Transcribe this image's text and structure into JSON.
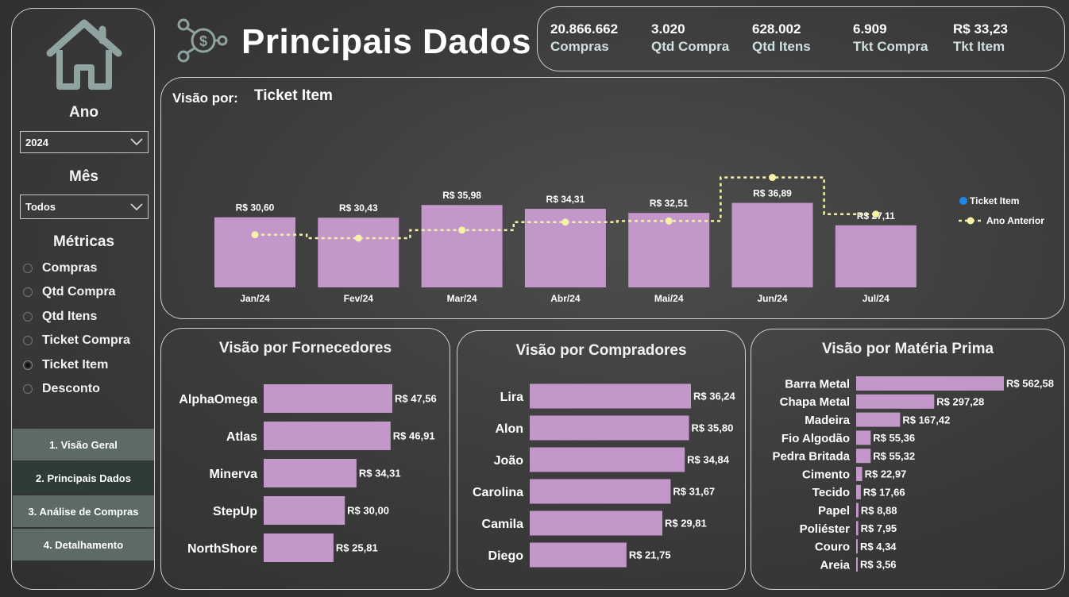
{
  "sidebar": {
    "ano_label": "Ano",
    "ano_value": "2024",
    "mes_label": "Mês",
    "mes_value": "Todos",
    "metricas_label": "Métricas",
    "metrics": [
      {
        "label": "Compras",
        "selected": false
      },
      {
        "label": "Qtd Compra",
        "selected": false
      },
      {
        "label": "Qtd Itens",
        "selected": false
      },
      {
        "label": "Ticket Compra",
        "selected": false
      },
      {
        "label": "Ticket Item",
        "selected": true
      },
      {
        "label": "Desconto",
        "selected": false
      }
    ],
    "nav": [
      {
        "label": "1. Visão Geral",
        "active": false
      },
      {
        "label": "2. Principais Dados",
        "active": true
      },
      {
        "label": "3. Análise de Compras",
        "active": false
      },
      {
        "label": "4. Detalhamento",
        "active": false
      }
    ]
  },
  "header": {
    "title": "Principais Dados"
  },
  "kpis": [
    {
      "value": "20.866.662",
      "label": "Compras"
    },
    {
      "value": "3.020",
      "label": "Qtd Compra"
    },
    {
      "value": "628.002",
      "label": "Qtd Itens"
    },
    {
      "value": "6.909",
      "label": "Tkt Compra"
    },
    {
      "value": "R$ 33,23",
      "label": "Tkt Item"
    }
  ],
  "main_chart": {
    "prefix": "Visão por:",
    "metric": "Ticket Item"
  },
  "colors": {
    "bar": "#c497cb",
    "line": "#f5f0a8",
    "legend_blue": "#1e88e5"
  },
  "chart_data": [
    {
      "type": "bar",
      "categories": [
        "Jan/24",
        "Fev/24",
        "Mar/24",
        "Abr/24",
        "Mai/24",
        "Jun/24",
        "Jul/24"
      ],
      "series": [
        {
          "name": "Ticket Item",
          "values": [
            30.6,
            30.43,
            35.98,
            34.31,
            32.51,
            36.89,
            27.11
          ],
          "labels": [
            "R$ 30,60",
            "R$ 30,43",
            "R$ 35,98",
            "R$ 34,31",
            "R$ 32,51",
            "R$ 36,89",
            "R$ 27,11"
          ]
        },
        {
          "name": "Ano Anterior",
          "type": "line",
          "values": [
            23.0,
            21.5,
            25.0,
            28.5,
            29.0,
            48.0,
            32.0
          ]
        }
      ],
      "legend_position": "right",
      "ylim": [
        0,
        52
      ]
    },
    {
      "type": "bar",
      "orientation": "horizontal",
      "title": "Visão por Fornecedores",
      "categories": [
        "AlphaOmega",
        "Atlas",
        "Minerva",
        "StepUp",
        "NorthShore"
      ],
      "values": [
        47.56,
        46.91,
        34.31,
        30.0,
        25.81
      ],
      "labels": [
        "R$ 47,56",
        "R$ 46,91",
        "R$ 34,31",
        "R$ 30,00",
        "R$ 25,81"
      ]
    },
    {
      "type": "bar",
      "orientation": "horizontal",
      "title": "Visão por Compradores",
      "categories": [
        "Lira",
        "Alon",
        "João",
        "Carolina",
        "Camila",
        "Diego"
      ],
      "values": [
        36.24,
        35.8,
        34.84,
        31.67,
        29.81,
        21.75
      ],
      "labels": [
        "R$ 36,24",
        "R$ 35,80",
        "R$ 34,84",
        "R$ 31,67",
        "R$ 29,81",
        "R$ 21,75"
      ]
    },
    {
      "type": "bar",
      "orientation": "horizontal",
      "title": "Visão por Matéria Prima",
      "categories": [
        "Barra Metal",
        "Chapa Metal",
        "Madeira",
        "Fio Algodão",
        "Pedra Britada",
        "Cimento",
        "Tecido",
        "Papel",
        "Poliéster",
        "Couro",
        "Areia"
      ],
      "values": [
        562.58,
        297.28,
        167.42,
        55.36,
        55.32,
        22.97,
        17.66,
        8.88,
        7.95,
        4.34,
        3.56
      ],
      "labels": [
        "R$ 562,58",
        "R$ 297,28",
        "R$ 167,42",
        "R$ 55,36",
        "R$ 55,32",
        "R$ 22,97",
        "R$ 17,66",
        "R$ 8,88",
        "R$ 7,95",
        "R$ 4,34",
        "R$ 3,56"
      ]
    }
  ]
}
